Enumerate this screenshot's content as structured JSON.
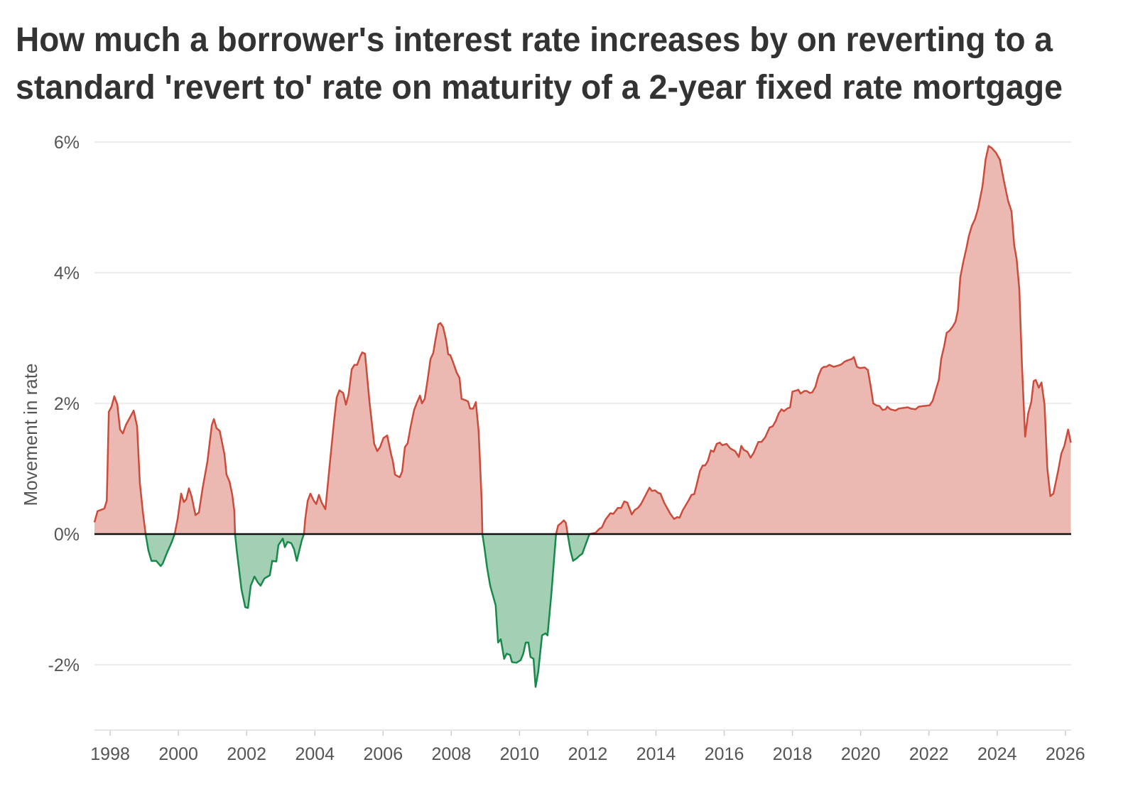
{
  "chart_data": {
    "type": "area",
    "title_lines": [
      "How much a borrower's interest rate increases by on reverting to a",
      "standard 'revert to' rate on maturity of a 2-year fixed rate mortgage"
    ],
    "xlabel": "",
    "ylabel": "Movement in rate",
    "xlim": [
      1997.54,
      2026.17
    ],
    "ylim": [
      -3.0,
      6.0
    ],
    "x_ticks": [
      1998,
      2000,
      2002,
      2004,
      2006,
      2008,
      2010,
      2012,
      2014,
      2016,
      2018,
      2020,
      2022,
      2024,
      2026
    ],
    "x_tick_labels": [
      "1998",
      "2000",
      "2002",
      "2004",
      "2006",
      "2008",
      "2010",
      "2012",
      "2014",
      "2016",
      "2018",
      "2020",
      "2022",
      "2024",
      "2026"
    ],
    "y_ticks": [
      6,
      4,
      2,
      0,
      -2
    ],
    "y_tick_labels": [
      "6%",
      "4%",
      "2%",
      "0%",
      "-2%"
    ],
    "grid": true,
    "colors": {
      "positive_line": "#cc4b3b",
      "positive_fill": "#ebb8b2",
      "negative_line": "#178a4a",
      "negative_fill": "#a3cfb4",
      "zero_line": "#111111",
      "grid": "#e6e6e6"
    },
    "points": [
      [
        1997.54,
        0.18
      ],
      [
        1997.63,
        0.35
      ],
      [
        1997.83,
        0.39
      ],
      [
        1997.9,
        0.51
      ],
      [
        1997.96,
        1.87
      ],
      [
        1998.04,
        1.95
      ],
      [
        1998.12,
        2.11
      ],
      [
        1998.21,
        1.98
      ],
      [
        1998.29,
        1.6
      ],
      [
        1998.37,
        1.54
      ],
      [
        1998.46,
        1.67
      ],
      [
        1998.69,
        1.89
      ],
      [
        1998.79,
        1.65
      ],
      [
        1998.87,
        0.78
      ],
      [
        1998.96,
        0.33
      ],
      [
        1999.04,
        0.0
      ],
      [
        1999.12,
        -0.25
      ],
      [
        1999.21,
        -0.41
      ],
      [
        1999.35,
        -0.41
      ],
      [
        1999.48,
        -0.49
      ],
      [
        1999.54,
        -0.45
      ],
      [
        1999.67,
        -0.28
      ],
      [
        1999.79,
        -0.14
      ],
      [
        1999.89,
        0.0
      ],
      [
        1999.98,
        0.24
      ],
      [
        2000.08,
        0.62
      ],
      [
        2000.16,
        0.49
      ],
      [
        2000.23,
        0.53
      ],
      [
        2000.31,
        0.7
      ],
      [
        2000.39,
        0.57
      ],
      [
        2000.5,
        0.29
      ],
      [
        2000.6,
        0.33
      ],
      [
        2000.71,
        0.7
      ],
      [
        2000.85,
        1.11
      ],
      [
        2000.98,
        1.67
      ],
      [
        2001.04,
        1.76
      ],
      [
        2001.12,
        1.62
      ],
      [
        2001.21,
        1.58
      ],
      [
        2001.35,
        1.22
      ],
      [
        2001.41,
        0.91
      ],
      [
        2001.5,
        0.8
      ],
      [
        2001.58,
        0.6
      ],
      [
        2001.64,
        0.35
      ],
      [
        2001.66,
        0.0
      ],
      [
        2001.71,
        -0.25
      ],
      [
        2001.85,
        -0.85
      ],
      [
        2001.96,
        -1.12
      ],
      [
        2002.04,
        -1.13
      ],
      [
        2002.12,
        -0.79
      ],
      [
        2002.23,
        -0.65
      ],
      [
        2002.33,
        -0.74
      ],
      [
        2002.41,
        -0.79
      ],
      [
        2002.52,
        -0.68
      ],
      [
        2002.68,
        -0.63
      ],
      [
        2002.75,
        -0.41
      ],
      [
        2002.87,
        -0.42
      ],
      [
        2002.93,
        -0.17
      ],
      [
        2003.06,
        -0.07
      ],
      [
        2003.12,
        -0.2
      ],
      [
        2003.2,
        -0.12
      ],
      [
        2003.31,
        -0.14
      ],
      [
        2003.39,
        -0.23
      ],
      [
        2003.47,
        -0.41
      ],
      [
        2003.62,
        -0.09
      ],
      [
        2003.68,
        0.0
      ],
      [
        2003.72,
        0.24
      ],
      [
        2003.79,
        0.51
      ],
      [
        2003.87,
        0.62
      ],
      [
        2003.97,
        0.51
      ],
      [
        2004.04,
        0.46
      ],
      [
        2004.12,
        0.6
      ],
      [
        2004.2,
        0.48
      ],
      [
        2004.31,
        0.38
      ],
      [
        2004.43,
        1.03
      ],
      [
        2004.56,
        1.71
      ],
      [
        2004.64,
        2.09
      ],
      [
        2004.72,
        2.2
      ],
      [
        2004.83,
        2.16
      ],
      [
        2004.91,
        1.98
      ],
      [
        2004.99,
        2.14
      ],
      [
        2005.08,
        2.52
      ],
      [
        2005.16,
        2.59
      ],
      [
        2005.24,
        2.59
      ],
      [
        2005.33,
        2.72
      ],
      [
        2005.39,
        2.78
      ],
      [
        2005.47,
        2.76
      ],
      [
        2005.6,
        2.03
      ],
      [
        2005.74,
        1.38
      ],
      [
        2005.83,
        1.27
      ],
      [
        2005.91,
        1.33
      ],
      [
        2006.01,
        1.47
      ],
      [
        2006.12,
        1.51
      ],
      [
        2006.24,
        1.21
      ],
      [
        2006.28,
        1.13
      ],
      [
        2006.35,
        0.91
      ],
      [
        2006.41,
        0.89
      ],
      [
        2006.49,
        0.87
      ],
      [
        2006.56,
        0.96
      ],
      [
        2006.64,
        1.33
      ],
      [
        2006.72,
        1.39
      ],
      [
        2006.81,
        1.65
      ],
      [
        2006.91,
        1.9
      ],
      [
        2006.99,
        2.01
      ],
      [
        2007.08,
        2.12
      ],
      [
        2007.14,
        2.0
      ],
      [
        2007.22,
        2.07
      ],
      [
        2007.3,
        2.34
      ],
      [
        2007.39,
        2.68
      ],
      [
        2007.47,
        2.77
      ],
      [
        2007.53,
        2.96
      ],
      [
        2007.62,
        3.21
      ],
      [
        2007.68,
        3.23
      ],
      [
        2007.76,
        3.17
      ],
      [
        2007.85,
        2.96
      ],
      [
        2007.91,
        2.75
      ],
      [
        2007.97,
        2.74
      ],
      [
        2008.05,
        2.63
      ],
      [
        2008.16,
        2.47
      ],
      [
        2008.24,
        2.39
      ],
      [
        2008.3,
        2.07
      ],
      [
        2008.41,
        2.05
      ],
      [
        2008.49,
        2.03
      ],
      [
        2008.55,
        1.92
      ],
      [
        2008.64,
        1.92
      ],
      [
        2008.72,
        2.02
      ],
      [
        2008.8,
        1.58
      ],
      [
        2008.89,
        0.51
      ],
      [
        2008.91,
        0.0
      ],
      [
        2008.97,
        -0.2
      ],
      [
        2009.05,
        -0.52
      ],
      [
        2009.14,
        -0.79
      ],
      [
        2009.3,
        -1.09
      ],
      [
        2009.37,
        -1.66
      ],
      [
        2009.45,
        -1.61
      ],
      [
        2009.55,
        -1.91
      ],
      [
        2009.62,
        -1.83
      ],
      [
        2009.72,
        -1.85
      ],
      [
        2009.78,
        -1.96
      ],
      [
        2009.91,
        -1.97
      ],
      [
        2010.03,
        -1.93
      ],
      [
        2010.11,
        -1.83
      ],
      [
        2010.18,
        -1.66
      ],
      [
        2010.26,
        -1.66
      ],
      [
        2010.32,
        -1.88
      ],
      [
        2010.41,
        -1.91
      ],
      [
        2010.47,
        -2.34
      ],
      [
        2010.55,
        -2.1
      ],
      [
        2010.66,
        -1.55
      ],
      [
        2010.76,
        -1.52
      ],
      [
        2010.82,
        -1.55
      ],
      [
        2010.93,
        -0.93
      ],
      [
        2011.07,
        0.0
      ],
      [
        2011.13,
        0.13
      ],
      [
        2011.22,
        0.17
      ],
      [
        2011.3,
        0.21
      ],
      [
        2011.36,
        0.17
      ],
      [
        2011.41,
        0.0
      ],
      [
        2011.49,
        -0.25
      ],
      [
        2011.57,
        -0.41
      ],
      [
        2011.68,
        -0.37
      ],
      [
        2011.76,
        -0.33
      ],
      [
        2011.84,
        -0.3
      ],
      [
        2011.93,
        -0.17
      ],
      [
        2012.05,
        0.0
      ],
      [
        2012.23,
        0.02
      ],
      [
        2012.34,
        0.08
      ],
      [
        2012.41,
        0.1
      ],
      [
        2012.52,
        0.22
      ],
      [
        2012.66,
        0.32
      ],
      [
        2012.75,
        0.31
      ],
      [
        2012.88,
        0.4
      ],
      [
        2012.98,
        0.4
      ],
      [
        2013.07,
        0.5
      ],
      [
        2013.16,
        0.48
      ],
      [
        2013.29,
        0.3
      ],
      [
        2013.38,
        0.37
      ],
      [
        2013.47,
        0.4
      ],
      [
        2013.56,
        0.46
      ],
      [
        2013.7,
        0.6
      ],
      [
        2013.81,
        0.71
      ],
      [
        2013.88,
        0.66
      ],
      [
        2013.97,
        0.67
      ],
      [
        2014.06,
        0.63
      ],
      [
        2014.13,
        0.62
      ],
      [
        2014.24,
        0.48
      ],
      [
        2014.42,
        0.31
      ],
      [
        2014.53,
        0.23
      ],
      [
        2014.62,
        0.26
      ],
      [
        2014.69,
        0.25
      ],
      [
        2014.78,
        0.36
      ],
      [
        2014.96,
        0.52
      ],
      [
        2015.04,
        0.6
      ],
      [
        2015.12,
        0.61
      ],
      [
        2015.2,
        0.77
      ],
      [
        2015.29,
        0.97
      ],
      [
        2015.37,
        1.05
      ],
      [
        2015.44,
        1.05
      ],
      [
        2015.52,
        1.12
      ],
      [
        2015.61,
        1.28
      ],
      [
        2015.69,
        1.26
      ],
      [
        2015.78,
        1.38
      ],
      [
        2015.87,
        1.4
      ],
      [
        2015.94,
        1.36
      ],
      [
        2016.07,
        1.38
      ],
      [
        2016.18,
        1.31
      ],
      [
        2016.32,
        1.27
      ],
      [
        2016.43,
        1.18
      ],
      [
        2016.5,
        1.35
      ],
      [
        2016.57,
        1.29
      ],
      [
        2016.68,
        1.26
      ],
      [
        2016.77,
        1.17
      ],
      [
        2016.86,
        1.24
      ],
      [
        2017.0,
        1.41
      ],
      [
        2017.09,
        1.41
      ],
      [
        2017.2,
        1.48
      ],
      [
        2017.33,
        1.63
      ],
      [
        2017.42,
        1.65
      ],
      [
        2017.51,
        1.73
      ],
      [
        2017.6,
        1.85
      ],
      [
        2017.68,
        1.91
      ],
      [
        2017.75,
        1.88
      ],
      [
        2017.84,
        1.92
      ],
      [
        2017.93,
        1.94
      ],
      [
        2018.0,
        2.18
      ],
      [
        2018.13,
        2.2
      ],
      [
        2018.17,
        2.21
      ],
      [
        2018.24,
        2.15
      ],
      [
        2018.35,
        2.19
      ],
      [
        2018.42,
        2.19
      ],
      [
        2018.51,
        2.16
      ],
      [
        2018.58,
        2.17
      ],
      [
        2018.67,
        2.25
      ],
      [
        2018.76,
        2.42
      ],
      [
        2018.85,
        2.53
      ],
      [
        2018.92,
        2.56
      ],
      [
        2018.99,
        2.56
      ],
      [
        2019.08,
        2.59
      ],
      [
        2019.21,
        2.56
      ],
      [
        2019.35,
        2.58
      ],
      [
        2019.44,
        2.6
      ],
      [
        2019.53,
        2.64
      ],
      [
        2019.62,
        2.66
      ],
      [
        2019.74,
        2.68
      ],
      [
        2019.8,
        2.71
      ],
      [
        2019.89,
        2.56
      ],
      [
        2019.98,
        2.54
      ],
      [
        2020.12,
        2.55
      ],
      [
        2020.21,
        2.51
      ],
      [
        2020.3,
        2.24
      ],
      [
        2020.37,
        2.0
      ],
      [
        2020.46,
        1.97
      ],
      [
        2020.55,
        1.96
      ],
      [
        2020.64,
        1.9
      ],
      [
        2020.73,
        1.91
      ],
      [
        2020.78,
        1.95
      ],
      [
        2020.87,
        1.91
      ],
      [
        2021.02,
        1.89
      ],
      [
        2021.11,
        1.92
      ],
      [
        2021.25,
        1.93
      ],
      [
        2021.38,
        1.94
      ],
      [
        2021.47,
        1.92
      ],
      [
        2021.61,
        1.91
      ],
      [
        2021.7,
        1.95
      ],
      [
        2021.83,
        1.96
      ],
      [
        2022.02,
        1.97
      ],
      [
        2022.11,
        2.04
      ],
      [
        2022.2,
        2.2
      ],
      [
        2022.29,
        2.36
      ],
      [
        2022.36,
        2.68
      ],
      [
        2022.45,
        2.88
      ],
      [
        2022.52,
        3.08
      ],
      [
        2022.6,
        3.11
      ],
      [
        2022.69,
        3.17
      ],
      [
        2022.78,
        3.25
      ],
      [
        2022.85,
        3.43
      ],
      [
        2022.92,
        3.93
      ],
      [
        2023.01,
        4.17
      ],
      [
        2023.1,
        4.38
      ],
      [
        2023.17,
        4.56
      ],
      [
        2023.26,
        4.72
      ],
      [
        2023.35,
        4.82
      ],
      [
        2023.44,
        4.98
      ],
      [
        2023.57,
        5.32
      ],
      [
        2023.66,
        5.73
      ],
      [
        2023.75,
        5.94
      ],
      [
        2023.84,
        5.91
      ],
      [
        2023.96,
        5.84
      ],
      [
        2024.08,
        5.73
      ],
      [
        2024.2,
        5.4
      ],
      [
        2024.32,
        5.1
      ],
      [
        2024.42,
        4.94
      ],
      [
        2024.5,
        4.42
      ],
      [
        2024.57,
        4.21
      ],
      [
        2024.65,
        3.75
      ],
      [
        2024.73,
        2.56
      ],
      [
        2024.82,
        1.49
      ],
      [
        2024.91,
        1.85
      ],
      [
        2025.0,
        2.02
      ],
      [
        2025.07,
        2.34
      ],
      [
        2025.13,
        2.36
      ],
      [
        2025.22,
        2.24
      ],
      [
        2025.3,
        2.32
      ],
      [
        2025.39,
        1.98
      ],
      [
        2025.47,
        1.01
      ],
      [
        2025.56,
        0.58
      ],
      [
        2025.65,
        0.62
      ],
      [
        2025.79,
        0.97
      ],
      [
        2025.88,
        1.23
      ],
      [
        2025.97,
        1.35
      ],
      [
        2026.08,
        1.6
      ],
      [
        2026.16,
        1.4
      ]
    ]
  }
}
